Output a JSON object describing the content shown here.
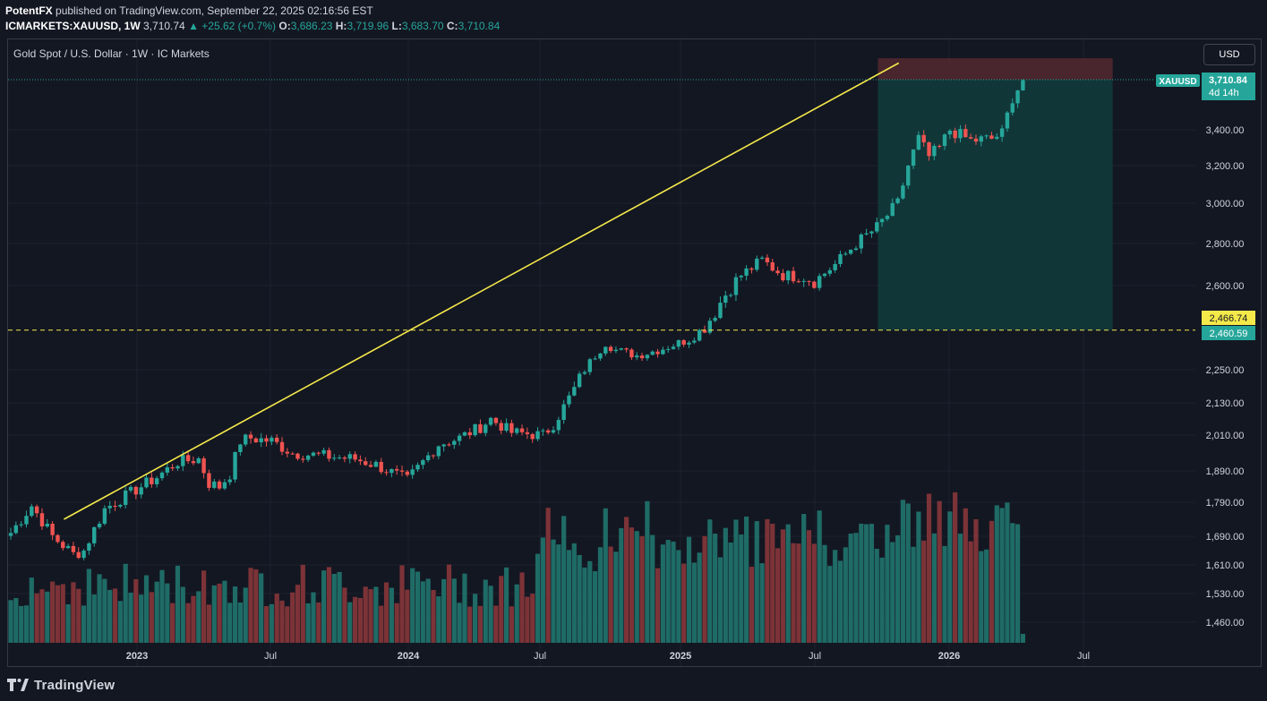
{
  "header": {
    "publisher": "PotentFX",
    "published_text": "published on TradingView.com, September 22, 2025 02:16:56 EST",
    "symbol": "ICMARKETS:XAUUSD, 1W",
    "price": "3,710.74",
    "change": "▲ +25.62 (+0.7%)",
    "o_label": "O:",
    "o_value": "3,686.23",
    "h_label": "H:",
    "h_value": "3,719.96",
    "l_label": "L:",
    "l_value": "3,683.70",
    "c_label": "C:",
    "c_value": "3,710.84"
  },
  "chart_title": "Gold Spot / U.S. Dollar · 1W · IC Markets",
  "currency_button": "USD",
  "footer_brand": "TradingView",
  "colors": {
    "background": "#131722",
    "up": "#26a69a",
    "down": "#ef5350",
    "trendline": "#f5e94a",
    "volume_up": "#1f6b66",
    "volume_down": "#7c3337",
    "target_zone": "#123a3b",
    "stop_zone": "#5c2b31"
  },
  "chart_data": {
    "type": "candlestick",
    "title": "Gold Spot / U.S. Dollar · 1W · IC Markets",
    "y_ticks": [
      "3,400.00",
      "3,200.00",
      "3,000.00",
      "2,800.00",
      "2,600.00",
      "2,250.00",
      "2,130.00",
      "2,010.00",
      "1,890.00",
      "1,790.00",
      "1,690.00",
      "1,610.00",
      "1,530.00",
      "1,460.00"
    ],
    "x_ticks": [
      "2023",
      "Jul",
      "2024",
      "Jul",
      "2025",
      "Jul",
      "2026",
      "Jul"
    ],
    "current_price_label": {
      "symbol": "XAUUSD",
      "price": "3,710.84",
      "countdown": "4d 14h"
    },
    "level_labels": [
      {
        "text": "2,466.74",
        "color": "#f5e94a"
      },
      {
        "text": "2,460.59",
        "color": "#26a69a"
      }
    ],
    "trendline": {
      "from": {
        "date": "2022-09-26",
        "price": 1740
      },
      "to": {
        "date": "2025-10-20",
        "price": 3780
      }
    },
    "dashed_level": 2466.74,
    "position_tool": {
      "entry": 3710.84,
      "stop": 3800,
      "target": 2466.74,
      "from": "2025-09-22",
      "to": "2026-08-03"
    },
    "price_path": [
      [
        0,
        1700
      ],
      [
        4,
        1780
      ],
      [
        8,
        1690
      ],
      [
        12,
        1640
      ],
      [
        14,
        1650
      ],
      [
        18,
        1770
      ],
      [
        22,
        1810
      ],
      [
        28,
        1870
      ],
      [
        32,
        1920
      ],
      [
        36,
        1930
      ],
      [
        38,
        1850
      ],
      [
        40,
        1840
      ],
      [
        42,
        1880
      ],
      [
        44,
        1990
      ],
      [
        46,
        2000
      ],
      [
        50,
        1990
      ],
      [
        54,
        1950
      ],
      [
        60,
        1940
      ],
      [
        66,
        1930
      ],
      [
        70,
        1910
      ],
      [
        76,
        1860
      ],
      [
        78,
        1900
      ],
      [
        82,
        1980
      ],
      [
        86,
        2000
      ],
      [
        90,
        2040
      ],
      [
        92,
        2070
      ],
      [
        96,
        2020
      ],
      [
        102,
        2010
      ],
      [
        104,
        2050
      ],
      [
        108,
        2180
      ],
      [
        112,
        2330
      ],
      [
        114,
        2400
      ],
      [
        116,
        2360
      ],
      [
        120,
        2330
      ],
      [
        124,
        2360
      ],
      [
        128,
        2400
      ],
      [
        130,
        2420
      ],
      [
        134,
        2500
      ],
      [
        140,
        2650
      ],
      [
        144,
        2720
      ],
      [
        148,
        2650
      ],
      [
        152,
        2640
      ],
      [
        154,
        2620
      ],
      [
        158,
        2700
      ],
      [
        162,
        2800
      ],
      [
        166,
        2880
      ],
      [
        170,
        3000
      ],
      [
        172,
        3200
      ],
      [
        174,
        3350
      ],
      [
        176,
        3250
      ],
      [
        178,
        3300
      ],
      [
        180,
        3400
      ],
      [
        184,
        3340
      ],
      [
        188,
        3350
      ],
      [
        190,
        3380
      ],
      [
        192,
        3600
      ],
      [
        194,
        3710
      ]
    ]
  }
}
